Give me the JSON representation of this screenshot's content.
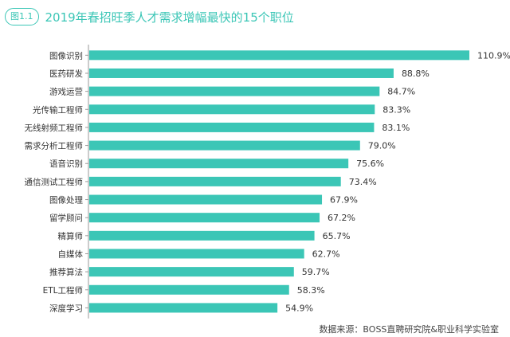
{
  "figure_tag": "图1.1",
  "chart_data": {
    "type": "bar",
    "orientation": "horizontal",
    "title": "2019年春招旺季人才需求增幅最快的15个职位",
    "categories": [
      "图像识别",
      "医药研发",
      "游戏运营",
      "光传输工程师",
      "无线射频工程师",
      "需求分析工程师",
      "语音识别",
      "通信测试工程师",
      "图像处理",
      "留学顾问",
      "精算师",
      "自媒体",
      "推荐算法",
      "ETL工程师",
      "深度学习"
    ],
    "values": [
      110.9,
      88.8,
      84.7,
      83.3,
      83.1,
      79.0,
      75.6,
      73.4,
      67.9,
      67.2,
      65.7,
      62.7,
      59.7,
      58.3,
      54.9
    ],
    "value_labels": [
      "110.9%",
      "88.8%",
      "84.7%",
      "83.3%",
      "83.1%",
      "79.0%",
      "75.6%",
      "73.4%",
      "67.9%",
      "67.2%",
      "65.7%",
      "62.7%",
      "59.7%",
      "58.3%",
      "54.9%"
    ],
    "unit": "%",
    "xlim": [
      0,
      110.9
    ],
    "bar_color": "#3bc6b6",
    "axis_color": "#999999",
    "grid": false,
    "source": "数据来源：BOSS直聘研究院&职业科学实验室"
  }
}
